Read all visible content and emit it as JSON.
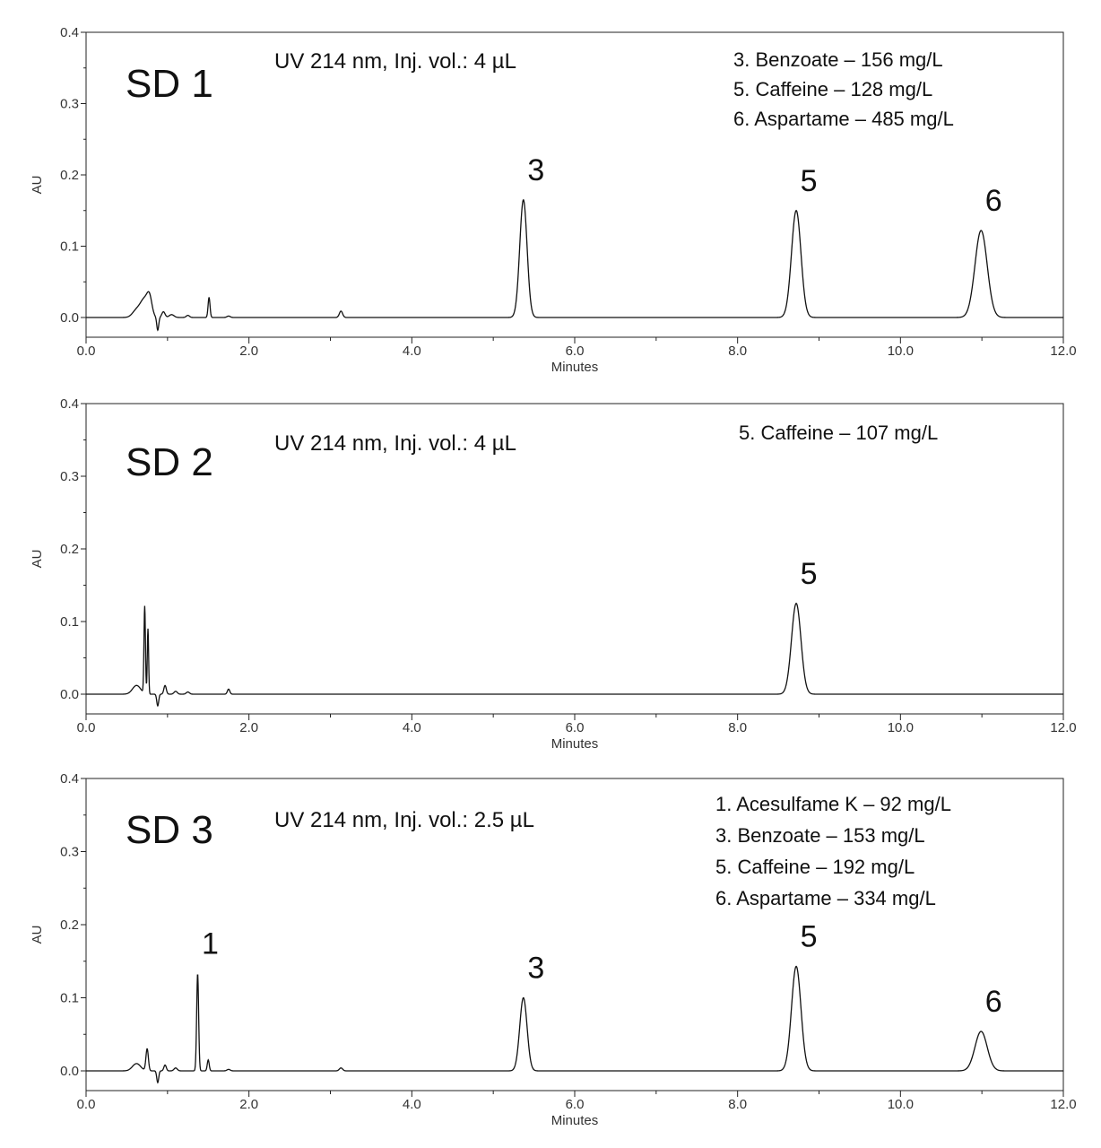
{
  "chart_data": [
    {
      "type": "line",
      "panel_label": "SD 1",
      "conditions": "UV 214 nm, Inj. vol.: 4 µL",
      "xlabel": "Minutes",
      "ylabel": "AU",
      "xlim": [
        0,
        12
      ],
      "ylim": [
        0,
        0.4
      ],
      "x_ticks": [
        "0.0",
        "2.0",
        "4.0",
        "6.0",
        "8.0",
        "10.0",
        "12.0"
      ],
      "y_ticks": [
        "0.0",
        "0.1",
        "0.2",
        "0.3",
        "0.4"
      ],
      "legend": [
        "3. Benzoate  – 156 mg/L",
        "5. Caffeine  – 128 mg/L",
        "6. Aspartame  – 485 mg/L"
      ],
      "peaks": [
        {
          "label": "3",
          "rt": 5.37,
          "height": 0.165
        },
        {
          "label": "5",
          "rt": 8.72,
          "height": 0.15
        },
        {
          "label": "6",
          "rt": 10.99,
          "height": 0.122
        }
      ]
    },
    {
      "type": "line",
      "panel_label": "SD 2",
      "conditions": "UV 214 nm, Inj. vol.: 4 µL",
      "xlabel": "Minutes",
      "ylabel": "AU",
      "xlim": [
        0,
        12
      ],
      "ylim": [
        0,
        0.4
      ],
      "x_ticks": [
        "0.0",
        "2.0",
        "4.0",
        "6.0",
        "8.0",
        "10.0",
        "12.0"
      ],
      "y_ticks": [
        "0.0",
        "0.1",
        "0.2",
        "0.3",
        "0.4"
      ],
      "legend": [
        "5. Caffeine – 107 mg/L"
      ],
      "peaks": [
        {
          "label": "5",
          "rt": 8.72,
          "height": 0.125
        }
      ]
    },
    {
      "type": "line",
      "panel_label": "SD 3",
      "conditions": "UV 214 nm, Inj. vol.: 2.5 µL",
      "xlabel": "Minutes",
      "ylabel": "AU",
      "xlim": [
        0,
        12
      ],
      "ylim": [
        0,
        0.4
      ],
      "x_ticks": [
        "0.0",
        "2.0",
        "4.0",
        "6.0",
        "8.0",
        "10.0",
        "12.0"
      ],
      "y_ticks": [
        "0.0",
        "0.1",
        "0.2",
        "0.3",
        "0.4"
      ],
      "legend": [
        "1. Acesulfame K  – 92 mg/L",
        "3. Benzoate  – 153 mg/L",
        "5. Caffeine  – 192 mg/L",
        "6. Aspartame  – 334 mg/L"
      ],
      "peaks": [
        {
          "label": "1",
          "rt": 1.37,
          "height": 0.133
        },
        {
          "label": "3",
          "rt": 5.37,
          "height": 0.1
        },
        {
          "label": "5",
          "rt": 8.72,
          "height": 0.143
        },
        {
          "label": "6",
          "rt": 10.99,
          "height": 0.054
        }
      ]
    }
  ]
}
